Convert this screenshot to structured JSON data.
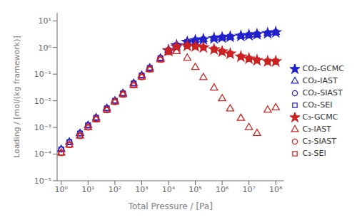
{
  "chart_data": {
    "type": "scatter",
    "xlabel": "Total Pressure / [Pa]",
    "ylabel": "Loading / [mol/(kg framework)]",
    "log": true,
    "grid": false,
    "legend": "right",
    "xlim": [
      0.7,
      200000000.0
    ],
    "ylim": [
      1e-05,
      20.0
    ],
    "xticks": [
      {
        "value": 1,
        "label": "10⁰"
      },
      {
        "value": 10,
        "label": "10¹"
      },
      {
        "value": 100,
        "label": "10²"
      },
      {
        "value": 1000,
        "label": "10³"
      },
      {
        "value": 10000,
        "label": "10⁴"
      },
      {
        "value": 100000,
        "label": "10⁵"
      },
      {
        "value": 1000000,
        "label": "10⁶"
      },
      {
        "value": 10000000,
        "label": "10⁷"
      },
      {
        "value": 100000000,
        "label": "10⁸"
      }
    ],
    "yticks": [
      {
        "value": 1e-05,
        "label": "10⁻⁵"
      },
      {
        "value": 0.0001,
        "label": "10⁻⁴"
      },
      {
        "value": 0.001,
        "label": "10⁻³"
      },
      {
        "value": 0.01,
        "label": "10⁻²"
      },
      {
        "value": 0.1,
        "label": "10⁻¹"
      },
      {
        "value": 1,
        "label": "10⁰"
      },
      {
        "value": 10,
        "label": "10¹"
      }
    ],
    "series": [
      {
        "name": "CO₂-GCMC",
        "color": "#2222cc",
        "marker": "star",
        "x": [
          10000.0,
          20000.0,
          50000.0,
          100000.0,
          200000.0,
          500000.0,
          1000000.0,
          2000000.0,
          5000000.0,
          10000000.0,
          20000000.0,
          50000000.0,
          100000000.0
        ],
        "values": [
          0.78,
          1.2,
          1.6,
          1.85,
          2.0,
          2.2,
          2.35,
          2.5,
          2.7,
          2.9,
          3.1,
          3.4,
          3.7
        ]
      },
      {
        "name": "CO₂-IAST",
        "color": "#2222cc",
        "marker": "triangle_open",
        "x": [
          1.0,
          2.0,
          5.0,
          10.0,
          20.0,
          50.0,
          100.0,
          200.0,
          500.0,
          1000.0,
          2000.0,
          5000.0,
          10000.0,
          20000.0,
          50000.0,
          100000.0,
          200000.0,
          500000.0,
          1000000.0,
          2000000.0,
          5000000.0,
          10000000.0,
          20000000.0,
          50000000.0,
          100000000.0
        ],
        "values": [
          0.00015,
          0.00028,
          0.0006,
          0.0012,
          0.0023,
          0.0052,
          0.01,
          0.019,
          0.045,
          0.09,
          0.17,
          0.4,
          0.78,
          1.2,
          1.6,
          1.85,
          2.0,
          2.2,
          2.35,
          2.5,
          2.7,
          2.9,
          3.1,
          3.4,
          3.7
        ]
      },
      {
        "name": "CO₂-SIAST",
        "color": "#2222cc",
        "marker": "circle_open",
        "x": [
          1.0,
          2.0,
          5.0,
          10.0,
          20.0,
          50.0,
          100.0,
          200.0,
          500.0,
          1000.0,
          2000.0,
          5000.0,
          10000.0,
          20000.0,
          50000.0,
          100000.0,
          200000.0,
          500000.0,
          1000000.0,
          2000000.0,
          5000000.0,
          10000000.0,
          20000000.0,
          50000000.0,
          100000000.0
        ],
        "values": [
          0.00015,
          0.00028,
          0.0006,
          0.0012,
          0.0023,
          0.0052,
          0.01,
          0.019,
          0.045,
          0.09,
          0.17,
          0.4,
          0.78,
          1.2,
          1.6,
          1.85,
          2.0,
          2.2,
          2.35,
          2.5,
          2.7,
          2.9,
          3.1,
          3.4,
          3.7
        ]
      },
      {
        "name": "CO₂-SEI",
        "color": "#2222cc",
        "marker": "square_open",
        "x": [
          1.0,
          2.0,
          5.0,
          10.0,
          20.0,
          50.0,
          100.0,
          200.0,
          500.0,
          1000.0,
          2000.0,
          5000.0,
          10000.0,
          20000.0,
          50000.0,
          100000.0,
          200000.0,
          500000.0,
          1000000.0,
          2000000.0,
          5000000.0,
          10000000.0,
          20000000.0,
          50000000.0,
          100000000.0
        ],
        "values": [
          0.00015,
          0.00028,
          0.0006,
          0.0012,
          0.0023,
          0.0052,
          0.01,
          0.019,
          0.045,
          0.09,
          0.17,
          0.4,
          0.78,
          1.2,
          1.6,
          1.85,
          2.0,
          2.2,
          2.35,
          2.5,
          2.7,
          2.9,
          3.1,
          3.4,
          3.7
        ]
      },
      {
        "name": "C₃-GCMC",
        "color": "#cc2222",
        "marker": "star",
        "x": [
          10000.0,
          20000.0,
          50000.0,
          100000.0,
          200000.0,
          500000.0,
          1000000.0,
          2000000.0,
          5000000.0,
          10000000.0,
          20000000.0,
          50000000.0,
          100000000.0
        ],
        "values": [
          0.75,
          1.05,
          1.15,
          1.1,
          1.0,
          0.85,
          0.7,
          0.58,
          0.45,
          0.38,
          0.33,
          0.3,
          0.3
        ]
      },
      {
        "name": "C₃-IAST",
        "color": "#cc2222",
        "marker": "triangle_open",
        "x": [
          1.0,
          2.0,
          5.0,
          10.0,
          20.0,
          50.0,
          100.0,
          200.0,
          500.0,
          1000.0,
          2000.0,
          5000.0,
          10000.0,
          20000.0,
          50000.0,
          100000.0,
          200000.0,
          500000.0,
          1000000.0,
          2000000.0,
          5000000.0,
          10000000.0,
          20000000.0,
          50000000.0,
          100000000.0
        ],
        "values": [
          0.00011,
          0.00022,
          0.00048,
          0.001,
          0.002,
          0.0045,
          0.009,
          0.017,
          0.038,
          0.078,
          0.15,
          0.35,
          0.65,
          0.7,
          0.4,
          0.18,
          0.075,
          0.03,
          0.012,
          0.005,
          0.0022,
          0.001,
          0.0006,
          0.0045,
          0.0055
        ]
      },
      {
        "name": "C₃-SIAST",
        "color": "#cc2222",
        "marker": "circle_open",
        "x": [
          1.0,
          2.0,
          5.0,
          10.0,
          20.0,
          50.0,
          100.0,
          200.0,
          500.0,
          1000.0,
          2000.0,
          5000.0,
          10000.0,
          20000.0,
          50000.0,
          100000.0,
          200000.0,
          500000.0,
          1000000.0,
          2000000.0,
          5000000.0,
          10000000.0,
          20000000.0,
          50000000.0,
          100000000.0
        ],
        "values": [
          0.00011,
          0.00022,
          0.00048,
          0.001,
          0.002,
          0.0045,
          0.009,
          0.017,
          0.038,
          0.078,
          0.15,
          0.35,
          0.75,
          1.05,
          1.15,
          1.1,
          1.0,
          0.85,
          0.7,
          0.58,
          0.45,
          0.38,
          0.33,
          0.3,
          0.3
        ]
      },
      {
        "name": "C₃-SEI",
        "color": "#cc2222",
        "marker": "square_open",
        "x": [
          1.0,
          2.0,
          5.0,
          10.0,
          20.0,
          50.0,
          100.0,
          200.0,
          500.0,
          1000.0,
          2000.0,
          5000.0,
          10000.0,
          20000.0,
          50000.0,
          100000.0,
          200000.0,
          500000.0,
          1000000.0,
          2000000.0,
          5000000.0,
          10000000.0,
          20000000.0,
          50000000.0,
          100000000.0
        ],
        "values": [
          0.00011,
          0.00022,
          0.00048,
          0.001,
          0.002,
          0.0045,
          0.009,
          0.017,
          0.038,
          0.078,
          0.15,
          0.35,
          0.75,
          1.05,
          1.15,
          1.1,
          1.0,
          0.85,
          0.7,
          0.58,
          0.45,
          0.38,
          0.33,
          0.3,
          0.3
        ]
      }
    ]
  }
}
